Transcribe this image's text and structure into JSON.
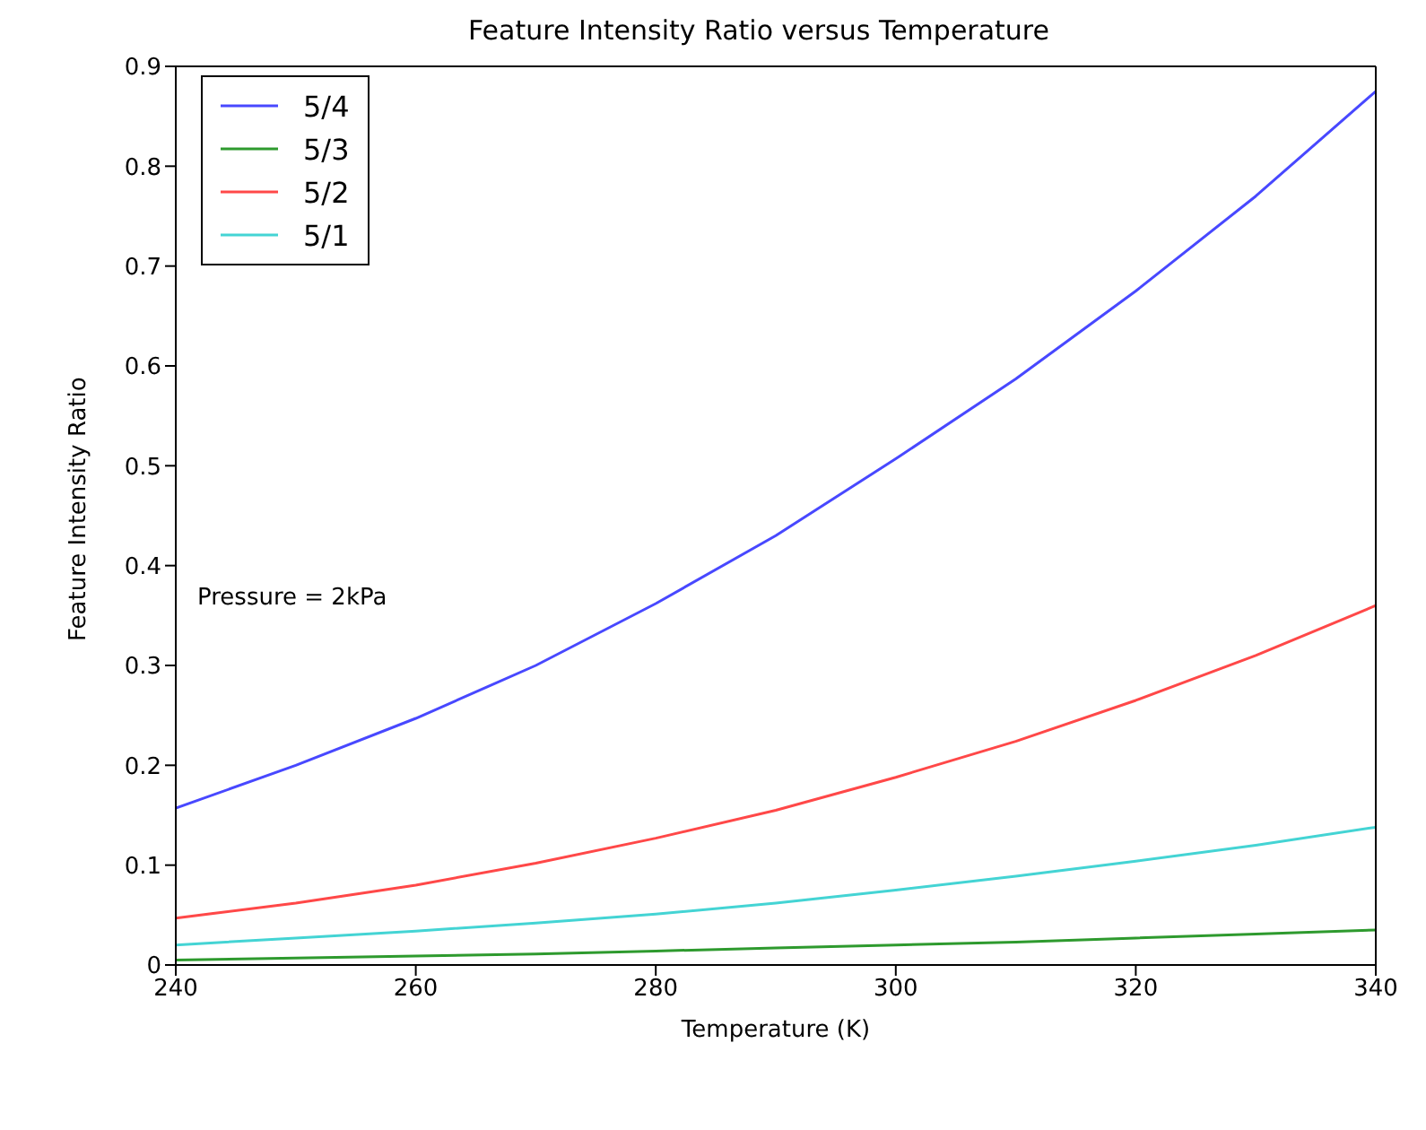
{
  "chart_data": {
    "type": "line",
    "title": "Feature Intensity Ratio versus Temperature",
    "xlabel": "Temperature (K)",
    "ylabel": "Feature Intensity Ratio",
    "annotations": [
      "Pressure = 2kPa"
    ],
    "x": [
      240,
      250,
      260,
      270,
      280,
      290,
      300,
      310,
      320,
      330,
      340
    ],
    "series": [
      {
        "name": "5/4",
        "color": "#4848ff",
        "values": [
          0.157,
          0.2,
          0.247,
          0.3,
          0.362,
          0.43,
          0.507,
          0.587,
          0.675,
          0.77,
          0.875
        ]
      },
      {
        "name": "5/3",
        "color": "#2e9a2e",
        "values": [
          0.005,
          0.007,
          0.009,
          0.011,
          0.014,
          0.017,
          0.02,
          0.023,
          0.027,
          0.031,
          0.035
        ]
      },
      {
        "name": "5/2",
        "color": "#ff4848",
        "values": [
          0.047,
          0.062,
          0.08,
          0.102,
          0.127,
          0.155,
          0.188,
          0.224,
          0.265,
          0.31,
          0.36
        ]
      },
      {
        "name": "5/1",
        "color": "#44d4d4",
        "values": [
          0.02,
          0.027,
          0.034,
          0.042,
          0.051,
          0.062,
          0.075,
          0.089,
          0.104,
          0.12,
          0.138
        ]
      }
    ],
    "xlim": [
      240,
      340
    ],
    "xticks": [
      240,
      260,
      280,
      300,
      320,
      340
    ],
    "ylim": [
      0,
      0.9
    ],
    "yticks": [
      0,
      0.1,
      0.2,
      0.3,
      0.4,
      0.5,
      0.6,
      0.7,
      0.8,
      0.9
    ],
    "grid": false,
    "legend": "top left",
    "marker": "none",
    "line_style": "solid"
  }
}
